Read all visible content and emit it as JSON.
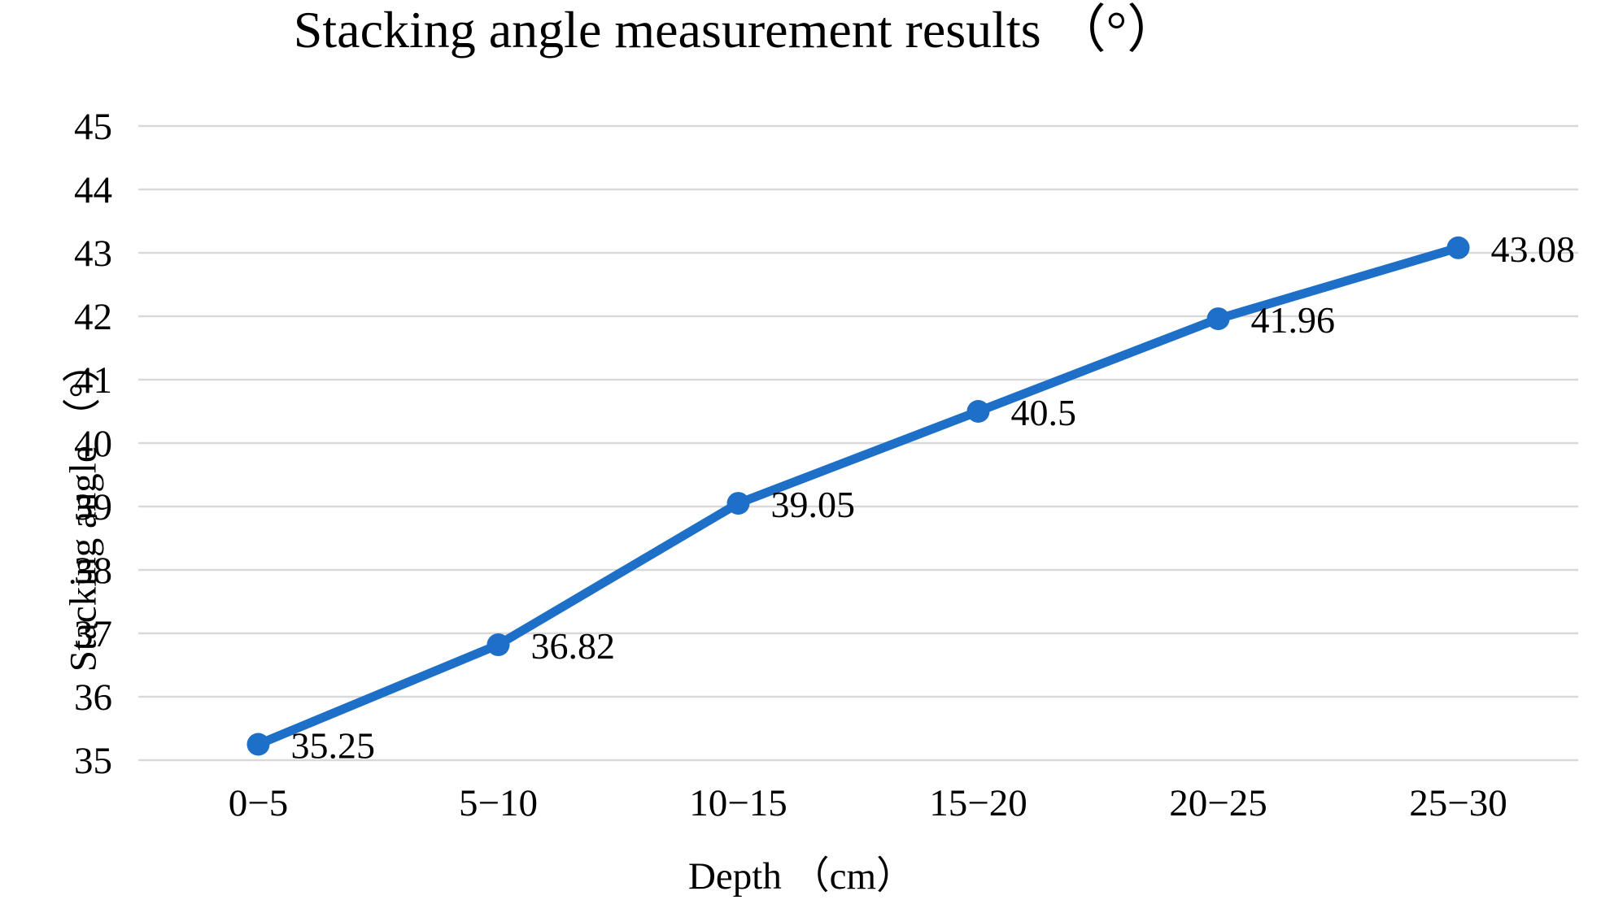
{
  "page": {
    "background": "#ffffff"
  },
  "chart_data": {
    "type": "line",
    "title": "Stacking angle measurement results （°）",
    "xlabel": "Depth （cm）",
    "ylabel": "Stacking angle （°）",
    "categories": [
      "0−5",
      "5−10",
      "10−15",
      "15−20",
      "20−25",
      "25−30"
    ],
    "values": [
      35.25,
      36.82,
      39.05,
      40.5,
      41.96,
      43.08
    ],
    "data_labels": [
      "35.25",
      "36.82",
      "39.05",
      "40.5",
      "41.96",
      "43.08"
    ],
    "ylim": [
      35,
      45
    ],
    "yticks": [
      35,
      36,
      37,
      38,
      39,
      40,
      41,
      42,
      43,
      44,
      45
    ],
    "grid": true,
    "legend": "none",
    "colors": {
      "line": "#1e6fc7",
      "marker": "#1e6fc7",
      "gridline": "#d9d9d9",
      "text": "#000000"
    }
  }
}
